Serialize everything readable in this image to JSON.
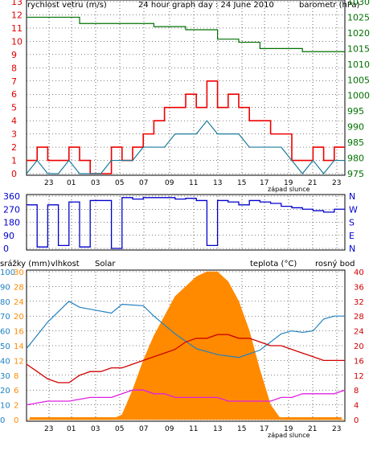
{
  "title": "24 hour graph day : 24 June 2010",
  "colors": {
    "wind": "#e00000",
    "baro": "#007000",
    "gust": "#ee0000",
    "wind_avg": "#1a7a9a",
    "dir": "#0000cc",
    "humidity": "#2080c0",
    "solar": "#ff8a00",
    "temp": "#d00000",
    "dew": "#e020e0",
    "rain": "#1060ff",
    "grid": "#000000",
    "frame": "#000000"
  },
  "x_ticks": [
    "23",
    "01",
    "03",
    "05",
    "07",
    "09",
    "11",
    "13",
    "15",
    "17",
    "19",
    "21",
    "23"
  ],
  "sunset_label": "západ slunce",
  "chart_data": [
    {
      "type": "line",
      "name": "wind-panel",
      "left_axis_label": "rychlost vetru (m/s)",
      "right_axis_label": "barometr (hPa)",
      "left_ticks": [
        0,
        1,
        2,
        3,
        4,
        5,
        6,
        7,
        8,
        9,
        10,
        11,
        12,
        13
      ],
      "right_ticks": [
        975,
        980,
        985,
        990,
        995,
        1000,
        1005,
        1010,
        1015,
        1020,
        1025,
        1030
      ],
      "left_range": [
        0,
        13
      ],
      "right_range": [
        975,
        1030
      ],
      "series_gust_points": [
        [
          0,
          1
        ],
        [
          1,
          2
        ],
        [
          2,
          1
        ],
        [
          3,
          1
        ],
        [
          4,
          2
        ],
        [
          5,
          1
        ],
        [
          6,
          0
        ],
        [
          7,
          0
        ],
        [
          8,
          2
        ],
        [
          9,
          1
        ],
        [
          10,
          2
        ],
        [
          11,
          3
        ],
        [
          12,
          4
        ],
        [
          13,
          5
        ],
        [
          14,
          5
        ],
        [
          15,
          6
        ],
        [
          16,
          5
        ],
        [
          17,
          7
        ],
        [
          18,
          5
        ],
        [
          19,
          6
        ],
        [
          20,
          5
        ],
        [
          21,
          4
        ],
        [
          22,
          4
        ],
        [
          23,
          3
        ],
        [
          24,
          3
        ],
        [
          25,
          1
        ],
        [
          26,
          1
        ],
        [
          27,
          2
        ],
        [
          28,
          1
        ],
        [
          29,
          2
        ],
        [
          30,
          2
        ]
      ],
      "series_avg_points": [
        [
          0,
          0
        ],
        [
          1,
          1
        ],
        [
          2,
          0
        ],
        [
          3,
          0
        ],
        [
          4,
          1
        ],
        [
          5,
          0
        ],
        [
          6,
          0
        ],
        [
          7,
          0
        ],
        [
          8,
          1
        ],
        [
          9,
          1
        ],
        [
          10,
          1
        ],
        [
          11,
          2
        ],
        [
          12,
          2
        ],
        [
          13,
          2
        ],
        [
          14,
          3
        ],
        [
          15,
          3
        ],
        [
          16,
          3
        ],
        [
          17,
          4
        ],
        [
          18,
          3
        ],
        [
          19,
          3
        ],
        [
          20,
          3
        ],
        [
          21,
          2
        ],
        [
          22,
          2
        ],
        [
          23,
          2
        ],
        [
          24,
          2
        ],
        [
          25,
          1
        ],
        [
          26,
          0
        ],
        [
          27,
          1
        ],
        [
          28,
          0
        ],
        [
          29,
          1
        ],
        [
          30,
          1
        ]
      ],
      "series_baro_points": [
        [
          0,
          1025
        ],
        [
          4,
          1025
        ],
        [
          5,
          1023
        ],
        [
          10,
          1023
        ],
        [
          12,
          1022
        ],
        [
          15,
          1021
        ],
        [
          18,
          1018
        ],
        [
          20,
          1017
        ],
        [
          22,
          1015
        ],
        [
          24,
          1015
        ],
        [
          26,
          1014
        ],
        [
          28,
          1014
        ],
        [
          30,
          1014
        ]
      ]
    },
    {
      "type": "line",
      "name": "direction-panel",
      "left_ticks": [
        0,
        90,
        180,
        270,
        360
      ],
      "right_labels": [
        "N",
        "W",
        "S",
        "E",
        "N"
      ],
      "left_range": [
        0,
        360
      ],
      "series_dir_points": [
        [
          0,
          300
        ],
        [
          1,
          10
        ],
        [
          2,
          300
        ],
        [
          3,
          20
        ],
        [
          4,
          320
        ],
        [
          5,
          10
        ],
        [
          6,
          330
        ],
        [
          7,
          330
        ],
        [
          8,
          0
        ],
        [
          9,
          350
        ],
        [
          10,
          340
        ],
        [
          11,
          350
        ],
        [
          12,
          350
        ],
        [
          13,
          350
        ],
        [
          14,
          340
        ],
        [
          15,
          345
        ],
        [
          16,
          330
        ],
        [
          17,
          20
        ],
        [
          18,
          330
        ],
        [
          19,
          320
        ],
        [
          20,
          300
        ],
        [
          21,
          330
        ],
        [
          22,
          320
        ],
        [
          23,
          310
        ],
        [
          24,
          290
        ],
        [
          25,
          280
        ],
        [
          26,
          270
        ],
        [
          27,
          260
        ],
        [
          28,
          250
        ],
        [
          29,
          270
        ],
        [
          30,
          270
        ]
      ]
    },
    {
      "type": "area",
      "name": "bottom-panel",
      "labels_left": [
        "srážky (mm)",
        "vlhkost",
        "Solar"
      ],
      "labels_right": [
        "teplota (°C)",
        "rosný bod"
      ],
      "left_ticks_humidity": [
        0,
        10,
        20,
        30,
        40,
        50,
        60,
        70,
        80,
        90,
        100
      ],
      "left_ticks_rain": [
        0,
        3,
        6,
        9,
        12,
        15,
        18,
        21,
        24,
        27,
        30
      ],
      "solar_ticks": [
        0,
        2,
        6,
        8,
        12,
        14,
        16,
        20,
        24,
        28,
        30
      ],
      "right_ticks_temp": [
        0,
        4,
        8,
        12,
        16,
        20,
        24,
        28,
        32,
        36,
        40
      ],
      "series_solar_points": [
        [
          0,
          0
        ],
        [
          8,
          0
        ],
        [
          9,
          1
        ],
        [
          10,
          6
        ],
        [
          11,
          12
        ],
        [
          12,
          17
        ],
        [
          13,
          21
        ],
        [
          14,
          25
        ],
        [
          15,
          27
        ],
        [
          16,
          29
        ],
        [
          17,
          30
        ],
        [
          18,
          30
        ],
        [
          19,
          28
        ],
        [
          20,
          24
        ],
        [
          21,
          18
        ],
        [
          22,
          10
        ],
        [
          23,
          3
        ],
        [
          24,
          0
        ],
        [
          30,
          0
        ]
      ],
      "series_humidity_points": [
        [
          0,
          48
        ],
        [
          2,
          66
        ],
        [
          4,
          80
        ],
        [
          5,
          76
        ],
        [
          8,
          72
        ],
        [
          9,
          78
        ],
        [
          11,
          77
        ],
        [
          12,
          70
        ],
        [
          14,
          58
        ],
        [
          16,
          48
        ],
        [
          18,
          44
        ],
        [
          20,
          42
        ],
        [
          22,
          47
        ],
        [
          24,
          58
        ],
        [
          25,
          60
        ],
        [
          26,
          59
        ],
        [
          27,
          60
        ],
        [
          28,
          68
        ],
        [
          29,
          70
        ],
        [
          30,
          70
        ]
      ],
      "series_temp_points": [
        [
          0,
          15
        ],
        [
          1,
          13
        ],
        [
          2,
          11
        ],
        [
          3,
          10
        ],
        [
          4,
          10
        ],
        [
          5,
          12
        ],
        [
          6,
          13
        ],
        [
          7,
          13
        ],
        [
          8,
          14
        ],
        [
          9,
          14
        ],
        [
          10,
          15
        ],
        [
          11,
          16
        ],
        [
          12,
          17
        ],
        [
          13,
          18
        ],
        [
          14,
          19
        ],
        [
          15,
          21
        ],
        [
          16,
          22
        ],
        [
          17,
          22
        ],
        [
          18,
          23
        ],
        [
          19,
          23
        ],
        [
          20,
          22
        ],
        [
          21,
          22
        ],
        [
          22,
          21
        ],
        [
          23,
          20
        ],
        [
          24,
          20
        ],
        [
          25,
          19
        ],
        [
          26,
          18
        ],
        [
          27,
          17
        ],
        [
          28,
          16
        ],
        [
          29,
          16
        ],
        [
          30,
          16
        ]
      ],
      "series_dew_points": [
        [
          0,
          4
        ],
        [
          2,
          5
        ],
        [
          4,
          5
        ],
        [
          6,
          6
        ],
        [
          8,
          6
        ],
        [
          9,
          7
        ],
        [
          10,
          8
        ],
        [
          11,
          8
        ],
        [
          12,
          7
        ],
        [
          13,
          7
        ],
        [
          14,
          6
        ],
        [
          15,
          6
        ],
        [
          16,
          6
        ],
        [
          17,
          6
        ],
        [
          18,
          6
        ],
        [
          19,
          5
        ],
        [
          20,
          5
        ],
        [
          21,
          5
        ],
        [
          22,
          5
        ],
        [
          23,
          5
        ],
        [
          24,
          6
        ],
        [
          25,
          6
        ],
        [
          26,
          7
        ],
        [
          27,
          7
        ],
        [
          28,
          7
        ],
        [
          29,
          7
        ],
        [
          30,
          8
        ]
      ]
    }
  ]
}
